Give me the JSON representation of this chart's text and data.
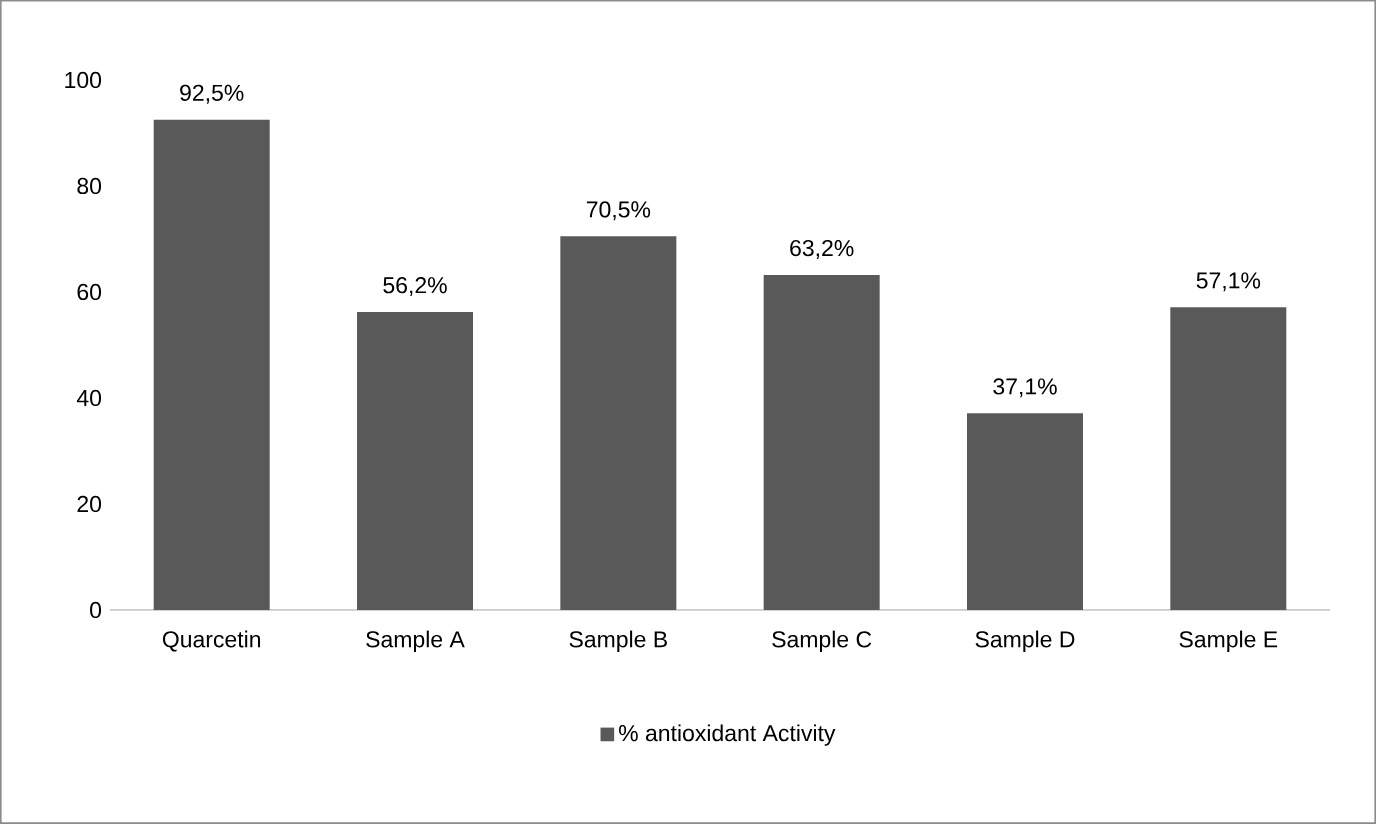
{
  "chart_data": {
    "type": "bar",
    "categories": [
      "Quarcetin",
      "Sample A",
      "Sample B",
      "Sample C",
      "Sample D",
      "Sample E"
    ],
    "series": [
      {
        "name": "% antioxidant Activity",
        "color": "#595959",
        "values": [
          92.5,
          56.2,
          70.5,
          63.2,
          37.1,
          57.1
        ],
        "value_labels": [
          "92,5%",
          "56,2%",
          "70,5%",
          "63,2%",
          "37,1%",
          "57,1%"
        ]
      }
    ],
    "ylim": [
      0,
      100
    ],
    "yticks": [
      0,
      20,
      40,
      60,
      80,
      100
    ],
    "legend": "bottom"
  }
}
